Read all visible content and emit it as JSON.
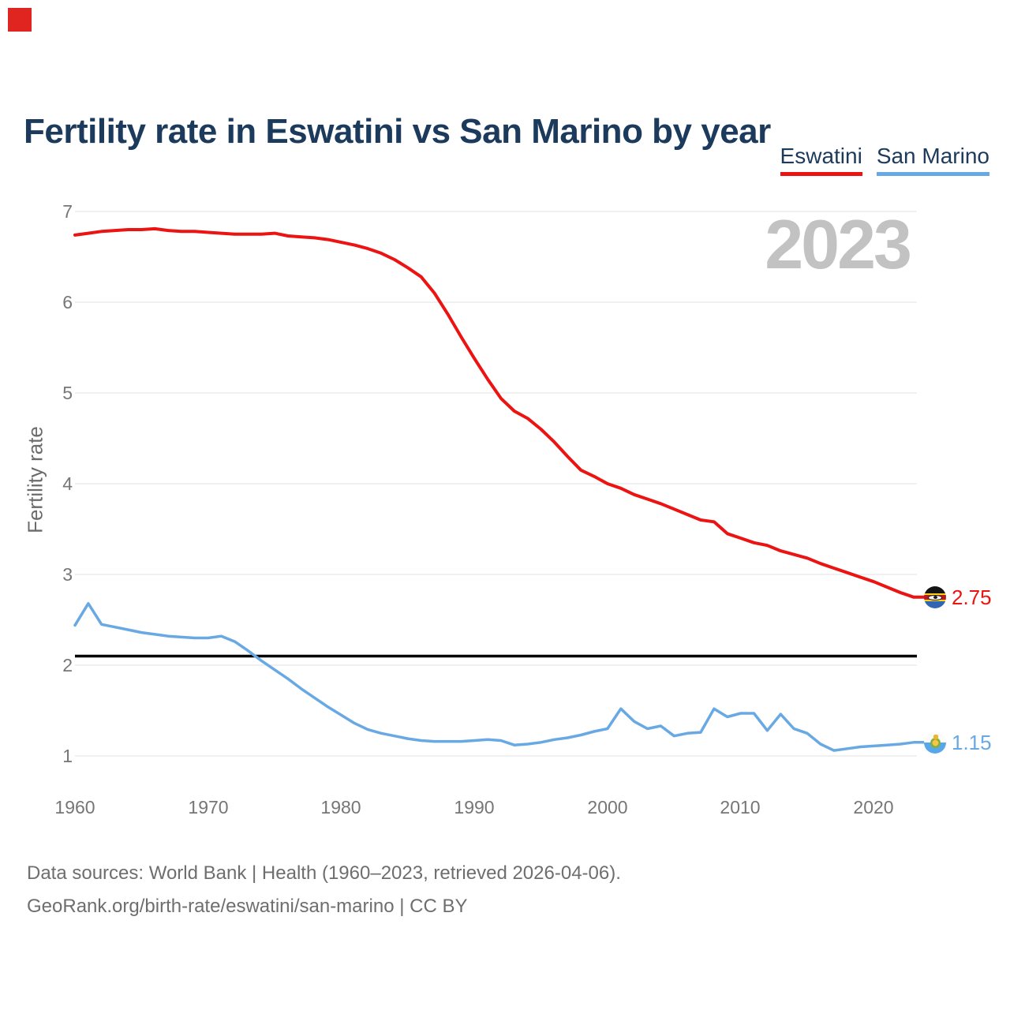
{
  "header": {
    "title": "Fertility rate in Eswatini vs San Marino by year"
  },
  "legend": [
    {
      "label": "Eswatini",
      "color": "#ec1313"
    },
    {
      "label": "San Marino",
      "color": "#68a9e3"
    }
  ],
  "watermark": "2023",
  "chart_data": {
    "type": "line",
    "title": "Fertility rate in Eswatini vs San Marino by year",
    "xlabel": "",
    "ylabel": "Fertility rate",
    "xlim": [
      1960,
      2023
    ],
    "ylim": [
      1,
      7
    ],
    "yticks": [
      7,
      6,
      5,
      4,
      3,
      2,
      1
    ],
    "xticks": [
      1960,
      1970,
      1980,
      1990,
      2000,
      2010,
      2020
    ],
    "grid": "horizontal",
    "legend_position": "top-right",
    "reference_line": {
      "value": 2.1,
      "color": "#000000"
    },
    "x": [
      1960,
      1961,
      1962,
      1963,
      1964,
      1965,
      1966,
      1967,
      1968,
      1969,
      1970,
      1971,
      1972,
      1973,
      1974,
      1975,
      1976,
      1977,
      1978,
      1979,
      1980,
      1981,
      1982,
      1983,
      1984,
      1985,
      1986,
      1987,
      1988,
      1989,
      1990,
      1991,
      1992,
      1993,
      1994,
      1995,
      1996,
      1997,
      1998,
      1999,
      2000,
      2001,
      2002,
      2003,
      2004,
      2005,
      2006,
      2007,
      2008,
      2009,
      2010,
      2011,
      2012,
      2013,
      2014,
      2015,
      2016,
      2017,
      2018,
      2019,
      2020,
      2021,
      2022,
      2023
    ],
    "series": [
      {
        "name": "Eswatini",
        "color": "#ec1313",
        "end_label": "2.75",
        "end_value": 2.75,
        "values": [
          6.74,
          6.76,
          6.78,
          6.79,
          6.8,
          6.8,
          6.81,
          6.79,
          6.78,
          6.78,
          6.77,
          6.76,
          6.75,
          6.75,
          6.75,
          6.76,
          6.73,
          6.72,
          6.71,
          6.69,
          6.66,
          6.63,
          6.59,
          6.54,
          6.47,
          6.38,
          6.28,
          6.1,
          5.87,
          5.62,
          5.38,
          5.15,
          4.94,
          4.8,
          4.72,
          4.6,
          4.46,
          4.3,
          4.15,
          4.08,
          4.0,
          3.95,
          3.88,
          3.83,
          3.78,
          3.72,
          3.66,
          3.6,
          3.58,
          3.45,
          3.4,
          3.35,
          3.32,
          3.26,
          3.22,
          3.18,
          3.12,
          3.07,
          3.02,
          2.97,
          2.92,
          2.86,
          2.8,
          2.75
        ]
      },
      {
        "name": "San Marino",
        "color": "#68a9e3",
        "end_label": "1.15",
        "end_value": 1.15,
        "values": [
          2.44,
          2.68,
          2.45,
          2.42,
          2.39,
          2.36,
          2.34,
          2.32,
          2.31,
          2.3,
          2.3,
          2.32,
          2.26,
          2.16,
          2.05,
          1.95,
          1.85,
          1.74,
          1.64,
          1.54,
          1.45,
          1.36,
          1.29,
          1.25,
          1.22,
          1.19,
          1.17,
          1.16,
          1.16,
          1.16,
          1.17,
          1.18,
          1.17,
          1.12,
          1.13,
          1.15,
          1.18,
          1.2,
          1.23,
          1.27,
          1.3,
          1.52,
          1.38,
          1.3,
          1.33,
          1.22,
          1.25,
          1.26,
          1.52,
          1.43,
          1.47,
          1.47,
          1.28,
          1.46,
          1.3,
          1.25,
          1.13,
          1.06,
          1.08,
          1.1,
          1.11,
          1.12,
          1.13,
          1.15
        ]
      }
    ]
  },
  "footer": {
    "line1": "Data sources: World Bank | Health (1960–2023, retrieved 2026-04-06).",
    "line2": "GeoRank.org/birth-rate/eswatini/san-marino | CC BY"
  }
}
